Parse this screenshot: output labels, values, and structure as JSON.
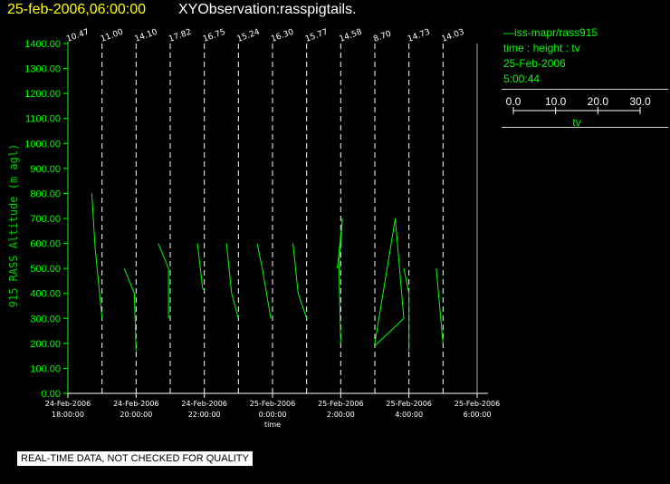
{
  "header": {
    "timestamp": "25-feb-2006,06:00:00",
    "title": "XYObservation:rasspigtails."
  },
  "legend": {
    "series_label": "—iss-mapr/rass915",
    "variables": "time : height : tv",
    "date": "25-Feb-2006",
    "time": "5:00:44",
    "colorbar_ticks": [
      "0.0",
      "10.0",
      "20.0",
      "30.0"
    ],
    "colorbar_label": "tv"
  },
  "footer": {
    "notice": "REAL-TIME DATA, NOT CHECKED FOR QUALITY"
  },
  "colors": {
    "data": "#00ff00",
    "axis_label": "#00cc00",
    "reference_line": "#ffffff",
    "background": "#000000",
    "timestamp": "#ffff00"
  },
  "chart_data": {
    "type": "line",
    "ylabel": "915 RASS Altitude (m agl)",
    "xlabel": "time",
    "ylim": [
      0,
      1400
    ],
    "yticks": [
      "0.00",
      "100.00",
      "200.00",
      "300.00",
      "400.00",
      "500.00",
      "600.00",
      "700.00",
      "800.00",
      "900.00",
      "1000.00",
      "1100.00",
      "1200.00",
      "1300.00",
      "1400.00"
    ],
    "xlim_hours": [
      -6.0,
      6.0
    ],
    "xticks": [
      {
        "hour": -6,
        "line1": "24-Feb-2006",
        "line2": "18:00:00"
      },
      {
        "hour": -4,
        "line1": "24-Feb-2006",
        "line2": "20:00:00"
      },
      {
        "hour": -2,
        "line1": "24-Feb-2006",
        "line2": "22:00:00"
      },
      {
        "hour": 0,
        "line1": "25-Feb-2006",
        "line2": "0:00:00"
      },
      {
        "hour": 2,
        "line1": "25-Feb-2006",
        "line2": "2:00:00"
      },
      {
        "hour": 4,
        "line1": "25-Feb-2006",
        "line2": "4:00:00"
      },
      {
        "hour": 6,
        "line1": "25-Feb-2006",
        "line2": "6:00:00"
      }
    ],
    "reference_lines": [
      {
        "hour": -5,
        "label": "10.47"
      },
      {
        "hour": -4,
        "label": "11.00"
      },
      {
        "hour": -3,
        "label": "14.10"
      },
      {
        "hour": -2,
        "label": "17.82"
      },
      {
        "hour": -1,
        "label": "16.75"
      },
      {
        "hour": 0,
        "label": "15.24"
      },
      {
        "hour": 1,
        "label": "16.30"
      },
      {
        "hour": 2,
        "label": "15.77"
      },
      {
        "hour": 3,
        "label": "14.58"
      },
      {
        "hour": 4,
        "label": "8.70"
      },
      {
        "hour": 5,
        "label": "14.73"
      },
      {
        "hour": 6,
        "label": "14.03"
      }
    ],
    "series": [
      {
        "points": [
          [
            -5.3,
            800
          ],
          [
            -5.2,
            580
          ],
          [
            -5.0,
            300
          ]
        ]
      },
      {
        "points": [
          [
            -4.35,
            500
          ],
          [
            -4.05,
            400
          ],
          [
            -4.0,
            170
          ]
        ]
      },
      {
        "points": [
          [
            -3.35,
            600
          ],
          [
            -3.05,
            500
          ],
          [
            -3.05,
            300
          ]
        ]
      },
      {
        "points": [
          [
            -2.2,
            600
          ],
          [
            -2.05,
            420
          ],
          [
            -2.0,
            410
          ]
        ]
      },
      {
        "points": [
          [
            -1.35,
            600
          ],
          [
            -1.2,
            400
          ],
          [
            -1.0,
            300
          ]
        ]
      },
      {
        "points": [
          [
            -0.45,
            600
          ],
          [
            -0.3,
            500
          ],
          [
            -0.05,
            300
          ]
        ]
      },
      {
        "points": [
          [
            0.6,
            600
          ],
          [
            0.75,
            400
          ],
          [
            1.0,
            300
          ]
        ]
      },
      {
        "points": [
          [
            1.9,
            500
          ],
          [
            2.05,
            700
          ],
          [
            1.95,
            500
          ],
          [
            2.0,
            200
          ]
        ]
      },
      {
        "points": [
          [
            3.0,
            200
          ],
          [
            3.6,
            700
          ],
          [
            3.85,
            300
          ],
          [
            3.0,
            190
          ]
        ]
      },
      {
        "points": [
          [
            3.85,
            500
          ],
          [
            4.0,
            400
          ],
          [
            4.0,
            170
          ]
        ]
      },
      {
        "points": [
          [
            4.8,
            500
          ],
          [
            5.0,
            200
          ]
        ]
      }
    ]
  }
}
